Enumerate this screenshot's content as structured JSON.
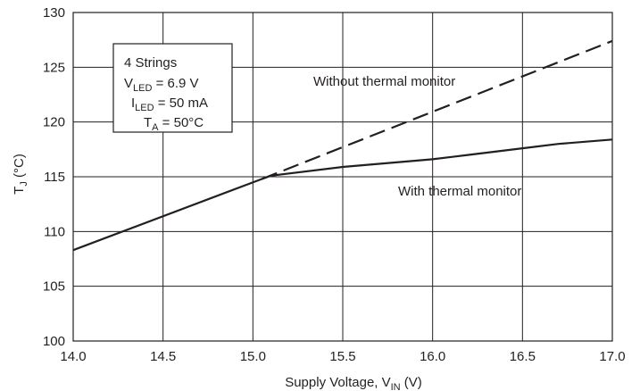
{
  "chart_data": {
    "type": "line",
    "xlabel": {
      "main": "Supply Voltage, V",
      "sub": "IN",
      "unit": " (V)"
    },
    "ylabel": {
      "main": "T",
      "sub": "J",
      "unit": " (°C)"
    },
    "xlim": [
      14.0,
      17.0
    ],
    "ylim": [
      100,
      130
    ],
    "xticks": [
      "14.0",
      "14.5",
      "15.0",
      "15.5",
      "16.0",
      "16.5",
      "17.0"
    ],
    "yticks": [
      "100",
      "105",
      "110",
      "115",
      "120",
      "125",
      "130"
    ],
    "grid": true,
    "legend_box": [
      {
        "main": "4 Strings",
        "sub": "",
        "rest": ""
      },
      {
        "main": "V",
        "sub": "LED",
        "rest": " = 6.9 V"
      },
      {
        "main": "I",
        "sub": "LED",
        "rest": " = 50 mA"
      },
      {
        "main": "T",
        "sub": "A",
        "rest": " = 50°C"
      }
    ],
    "series": [
      {
        "name": "Without thermal monitor",
        "style": "dashed",
        "x": [
          15.05,
          17.0
        ],
        "y": [
          114.8,
          127.4
        ]
      },
      {
        "name": "With thermal monitor",
        "style": "solid",
        "x": [
          14.0,
          15.05,
          15.1,
          15.5,
          16.0,
          16.2,
          16.5,
          16.7,
          17.0
        ],
        "y": [
          108.3,
          114.8,
          115.1,
          115.9,
          116.6,
          117.0,
          117.6,
          118.0,
          118.4
        ]
      }
    ],
    "annotations": [
      "Without thermal monitor",
      "With thermal monitor"
    ],
    "colors": {
      "line": "#231f20",
      "grid": "#231f20",
      "background": "#ffffff"
    }
  }
}
